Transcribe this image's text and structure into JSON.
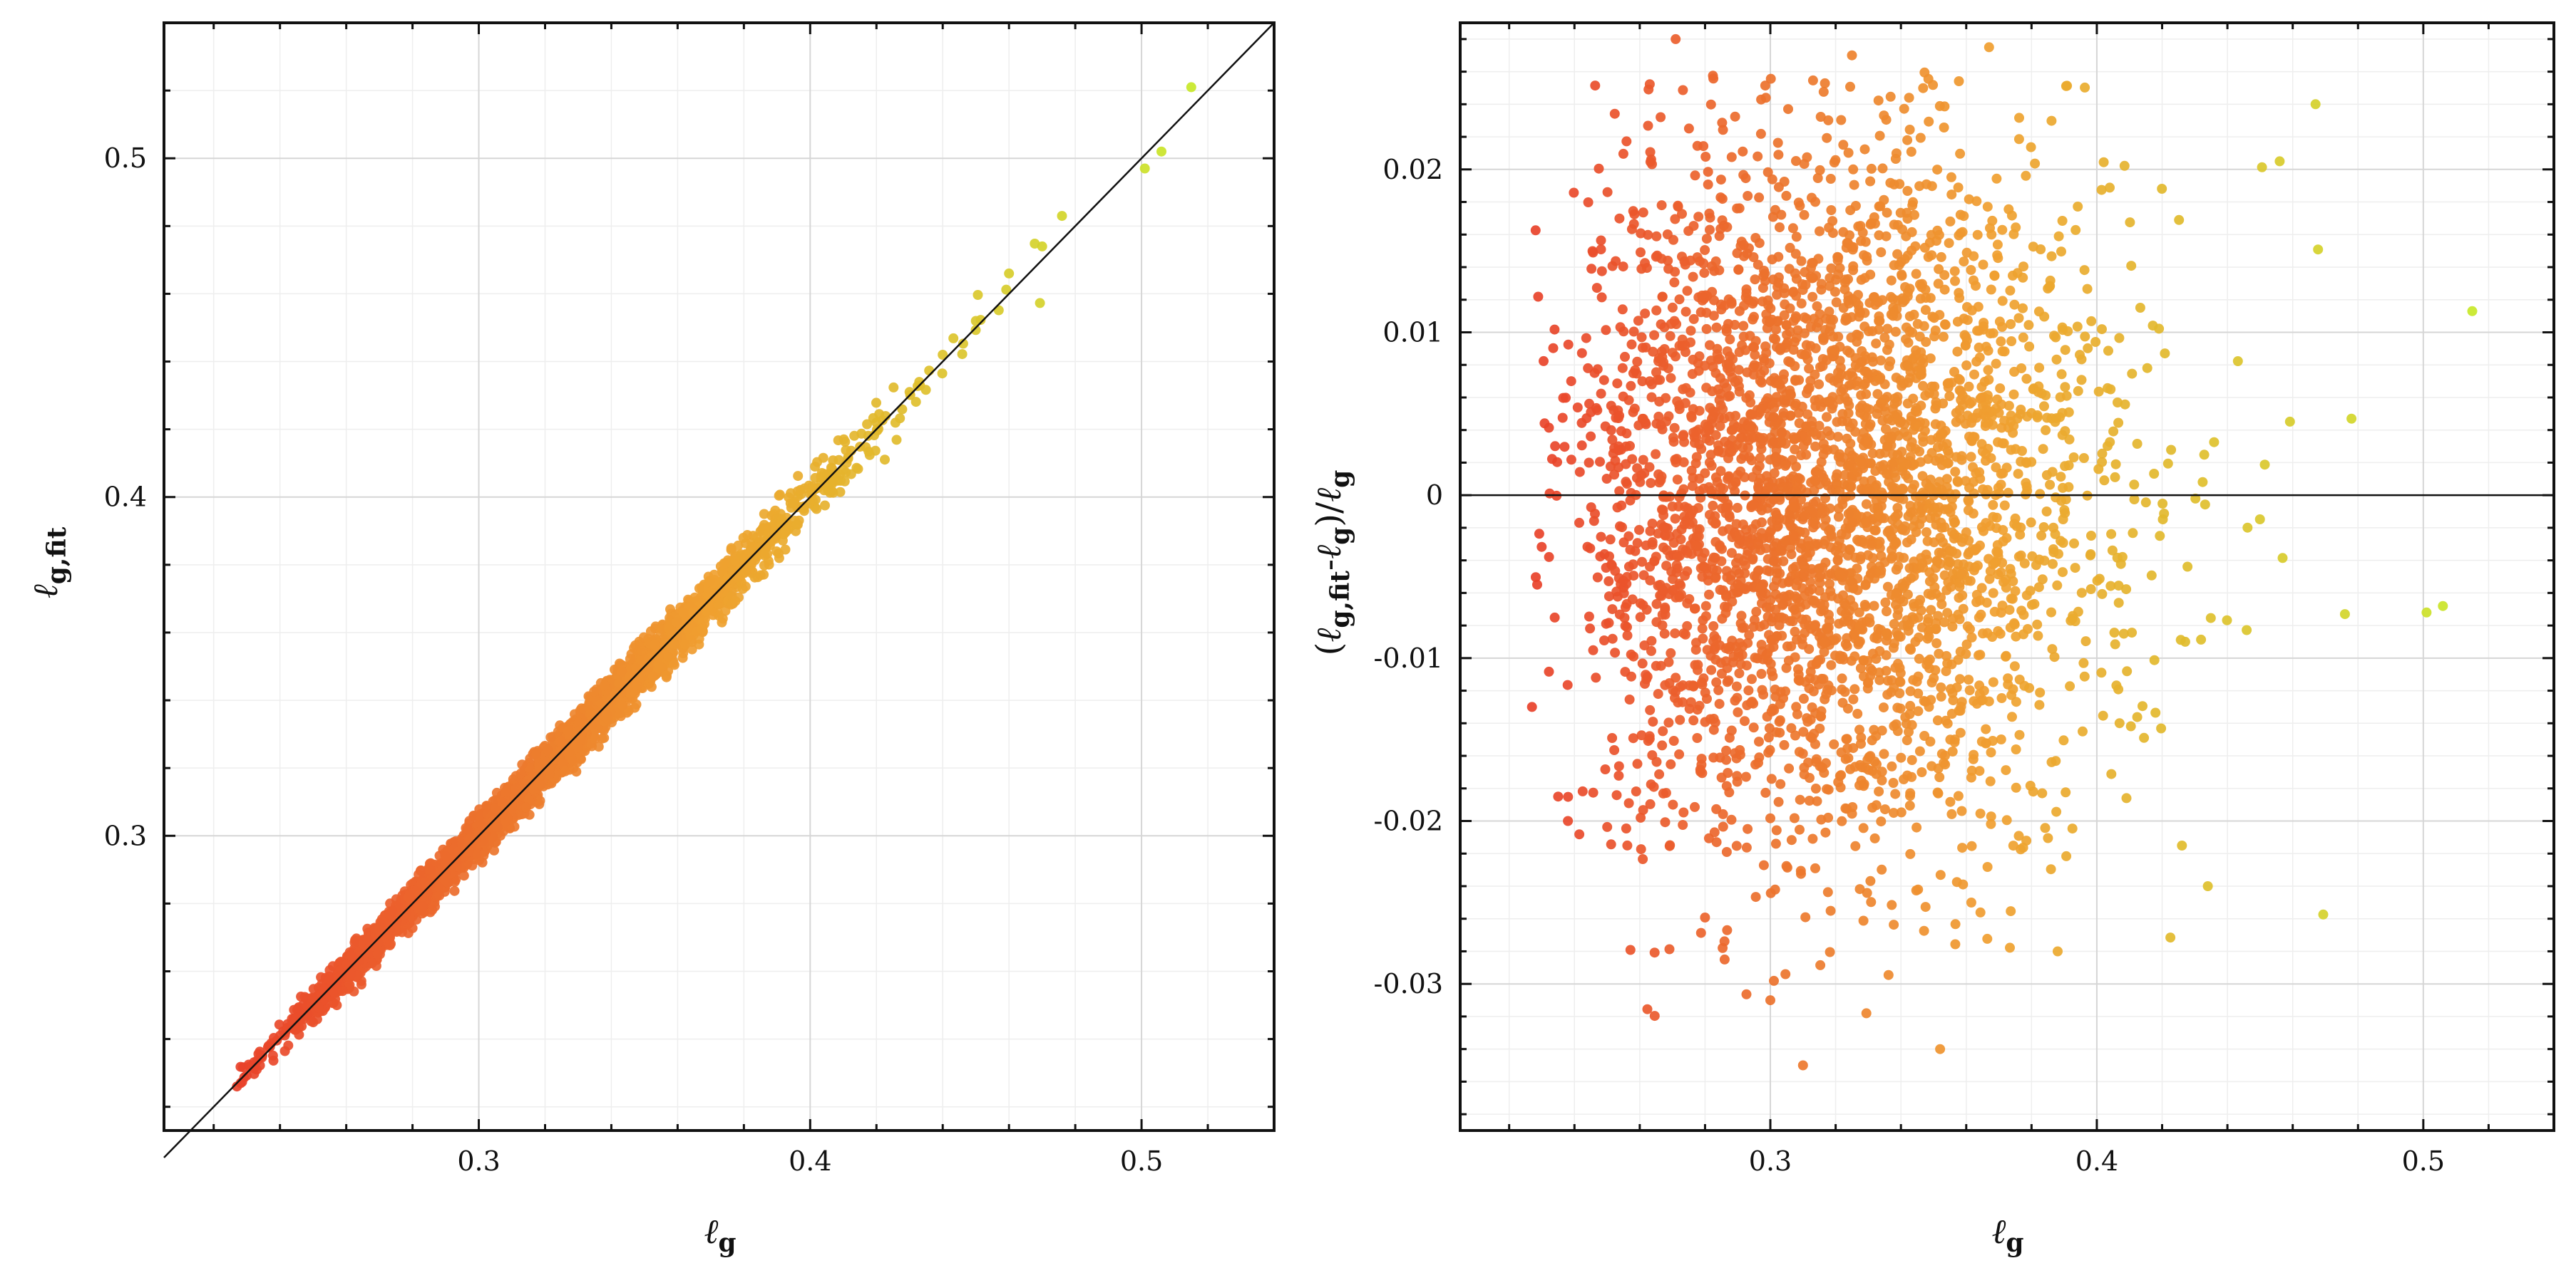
{
  "chart_data": [
    {
      "id": "left",
      "type": "scatter",
      "title": "",
      "xlabel": "ℓg",
      "ylabel": "ℓg,fit",
      "xlim": [
        0.205,
        0.54
      ],
      "ylim": [
        0.213,
        0.54
      ],
      "xticks": [
        {
          "v": 0.3,
          "label": "0.3"
        },
        {
          "v": 0.4,
          "label": "0.4"
        },
        {
          "v": 0.5,
          "label": "0.5"
        }
      ],
      "yticks": [
        {
          "v": 0.3,
          "label": "0.3"
        },
        {
          "v": 0.4,
          "label": "0.4"
        },
        {
          "v": 0.5,
          "label": "0.5"
        }
      ],
      "reference_line": {
        "type": "identity",
        "from": [
          0.205,
          0.205
        ],
        "to": [
          0.54,
          0.54
        ]
      },
      "color_map": {
        "low": "#e8402a",
        "mid": "#f0a030",
        "high": "#c8e828",
        "scale_by": "x"
      },
      "grid": true,
      "points_note": "Approx. 4000 samples; y ≈ x × (1 + r), r spread ±0.03, densest for x in 0.26–0.38",
      "sample_points": [
        [
          0.227,
          0.226
        ],
        [
          0.233,
          0.231
        ],
        [
          0.24,
          0.241
        ],
        [
          0.25,
          0.252
        ],
        [
          0.26,
          0.262
        ],
        [
          0.27,
          0.272
        ],
        [
          0.28,
          0.281
        ],
        [
          0.29,
          0.289
        ],
        [
          0.3,
          0.301
        ],
        [
          0.31,
          0.309
        ],
        [
          0.32,
          0.322
        ],
        [
          0.33,
          0.331
        ],
        [
          0.34,
          0.34
        ],
        [
          0.35,
          0.352
        ],
        [
          0.36,
          0.359
        ],
        [
          0.37,
          0.37
        ],
        [
          0.38,
          0.382
        ],
        [
          0.39,
          0.389
        ],
        [
          0.4,
          0.401
        ],
        [
          0.41,
          0.408
        ],
        [
          0.42,
          0.422
        ],
        [
          0.43,
          0.431
        ],
        [
          0.44,
          0.442
        ],
        [
          0.45,
          0.452
        ],
        [
          0.46,
          0.466
        ],
        [
          0.47,
          0.474
        ],
        [
          0.476,
          0.483
        ],
        [
          0.501,
          0.497
        ],
        [
          0.506,
          0.502
        ],
        [
          0.515,
          0.521
        ]
      ]
    },
    {
      "id": "right",
      "type": "scatter",
      "title": "",
      "xlabel": "ℓg",
      "ylabel": "(ℓg,fit-ℓg)/ℓg",
      "xlim": [
        0.205,
        0.54
      ],
      "ylim": [
        -0.039,
        0.029
      ],
      "xticks": [
        {
          "v": 0.3,
          "label": "0.3"
        },
        {
          "v": 0.4,
          "label": "0.4"
        },
        {
          "v": 0.5,
          "label": "0.5"
        }
      ],
      "yticks": [
        {
          "v": 0.02,
          "label": "0.02"
        },
        {
          "v": 0.01,
          "label": "0.01"
        },
        {
          "v": 0,
          "label": "0"
        },
        {
          "v": -0.01,
          "label": "-0.01"
        },
        {
          "v": -0.02,
          "label": "-0.02"
        },
        {
          "v": -0.03,
          "label": "-0.03"
        }
      ],
      "reference_line": {
        "type": "horizontal",
        "y": 0
      },
      "color_map": {
        "low": "#e8402a",
        "mid": "#f0a030",
        "high": "#c8e828",
        "scale_by": "x"
      },
      "grid": true,
      "points_note": "Approx. 4000 samples; residuals mostly within ±0.02, extremes 0.028 and -0.035",
      "sample_points": [
        [
          0.227,
          -0.013
        ],
        [
          0.235,
          -0.0185
        ],
        [
          0.238,
          -0.02
        ],
        [
          0.239,
          0.007
        ],
        [
          0.271,
          0.028
        ],
        [
          0.325,
          0.027
        ],
        [
          0.367,
          0.0275
        ],
        [
          0.31,
          -0.035
        ],
        [
          0.352,
          -0.034
        ],
        [
          0.467,
          0.024
        ],
        [
          0.456,
          0.0205
        ],
        [
          0.515,
          0.0113
        ],
        [
          0.478,
          0.0047
        ],
        [
          0.501,
          -0.0072
        ],
        [
          0.506,
          -0.0068
        ],
        [
          0.476,
          -0.0073
        ],
        [
          0.434,
          -0.024
        ],
        [
          0.388,
          -0.028
        ],
        [
          0.3,
          -0.031
        ],
        [
          0.286,
          -0.0285
        ]
      ]
    }
  ]
}
